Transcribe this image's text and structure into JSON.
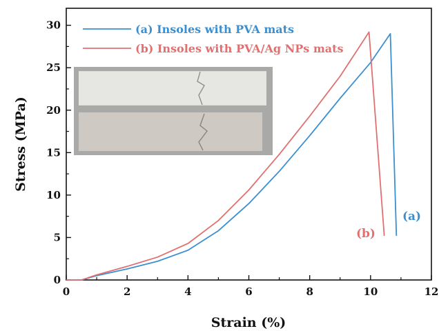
{
  "chart_data": {
    "type": "line",
    "title": "",
    "xlabel": "Strain (%)",
    "ylabel": "Stress (MPa)",
    "xlim": [
      0,
      12
    ],
    "ylim": [
      0,
      32
    ],
    "xticks": [
      0,
      2,
      4,
      6,
      8,
      10,
      12
    ],
    "yticks": [
      0,
      5,
      10,
      15,
      20,
      25,
      30
    ],
    "grid": false,
    "legend_position": "top-left",
    "series": [
      {
        "name": "(a) Insoles with PVA mats",
        "label": "(a)",
        "color": "#3a8fd1",
        "x": [
          0,
          0.5,
          1,
          2,
          3,
          4,
          5,
          6,
          7,
          8,
          9,
          10,
          10.65,
          10.85
        ],
        "y": [
          0,
          0,
          0.5,
          1.3,
          2.2,
          3.5,
          5.8,
          9.0,
          12.8,
          17.0,
          21.4,
          25.6,
          29.0,
          5.2
        ]
      },
      {
        "name": "(b) Insoles with PVA/Ag NPs mats",
        "label": "(b)",
        "color": "#e07070",
        "x": [
          0,
          0.5,
          1,
          2,
          3,
          4,
          5,
          6,
          7,
          8,
          9,
          9.95,
          10.45
        ],
        "y": [
          0,
          0,
          0.6,
          1.6,
          2.7,
          4.3,
          7.0,
          10.6,
          14.8,
          19.3,
          24.0,
          29.2,
          5.2
        ]
      }
    ]
  }
}
